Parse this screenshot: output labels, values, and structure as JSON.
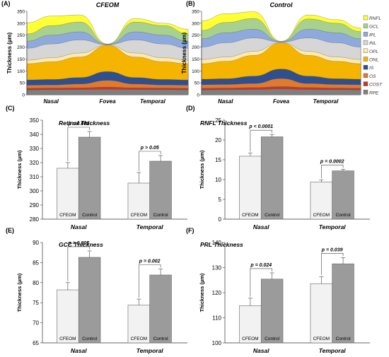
{
  "layer_colors": {
    "RPE": "#7f7f7f",
    "COST": "#c0392b",
    "OS": "#e07a2e",
    "IS": "#2f4f8f",
    "ONL": "#f5b400",
    "OPL": "#fde9a8",
    "INL": "#d6d6d6",
    "IPL": "#8ea9db",
    "GCL": "#a9d18e",
    "RNFL": "#ffff33"
  },
  "bar_colors": {
    "CFEOM": "#f2f2f2",
    "Control": "#9b9b9b"
  },
  "chart_data": [
    {
      "type": "area",
      "panel_label": "(A)",
      "title": "CFEOM",
      "ylabel": "Thickness (µm)",
      "ylim": [
        0,
        350
      ],
      "yticks": [
        0,
        50,
        100,
        150,
        200,
        250,
        300,
        350
      ],
      "xticks": [
        "Nasal",
        "Fovea",
        "Temporal"
      ],
      "legend_position": "none",
      "series_upper_bounds": [
        {
          "name": "RPE",
          "values": [
            20,
            21,
            22,
            23,
            22,
            21,
            20
          ]
        },
        {
          "name": "COST",
          "values": [
            27,
            28,
            29,
            32,
            29,
            28,
            27
          ]
        },
        {
          "name": "OS",
          "values": [
            40,
            41,
            45,
            60,
            45,
            41,
            40
          ]
        },
        {
          "name": "IS",
          "values": [
            62,
            64,
            72,
            97,
            72,
            64,
            62
          ]
        },
        {
          "name": "ONL",
          "values": [
            130,
            138,
            158,
            207,
            158,
            138,
            130
          ]
        },
        {
          "name": "OPL",
          "values": [
            145,
            155,
            175,
            209,
            175,
            155,
            145
          ]
        },
        {
          "name": "INL",
          "values": [
            195,
            213,
            230,
            210,
            230,
            213,
            195
          ]
        },
        {
          "name": "IPL",
          "values": [
            225,
            250,
            264,
            211,
            264,
            250,
            225
          ]
        },
        {
          "name": "GCL",
          "values": [
            255,
            290,
            305,
            212,
            305,
            290,
            255
          ]
        },
        {
          "name": "RNFL",
          "values": [
            302,
            330,
            335,
            213,
            320,
            300,
            275
          ]
        }
      ]
    },
    {
      "type": "area",
      "panel_label": "(B)",
      "title": "Control",
      "ylabel": "Thickness (µm)",
      "ylim": [
        0,
        350
      ],
      "yticks": [
        0,
        50,
        100,
        150,
        200,
        250,
        300,
        350
      ],
      "xticks": [
        "Nasal",
        "Fovea",
        "Temporal"
      ],
      "legend_position": "right",
      "legend": [
        "RNFL",
        "GCL",
        "IPL",
        "INL",
        "OPL",
        "ONL",
        "IS",
        "OS",
        "COST",
        "RPE"
      ],
      "series_upper_bounds": [
        {
          "name": "RPE",
          "values": [
            20,
            21,
            22,
            24,
            22,
            21,
            20
          ]
        },
        {
          "name": "COST",
          "values": [
            27,
            28,
            30,
            34,
            30,
            28,
            27
          ]
        },
        {
          "name": "OS",
          "values": [
            42,
            43,
            47,
            68,
            47,
            43,
            42
          ]
        },
        {
          "name": "IS",
          "values": [
            65,
            67,
            78,
            108,
            78,
            67,
            65
          ]
        },
        {
          "name": "ONL",
          "values": [
            130,
            140,
            165,
            218,
            165,
            140,
            130
          ]
        },
        {
          "name": "OPL",
          "values": [
            148,
            158,
            182,
            220,
            182,
            158,
            148
          ]
        },
        {
          "name": "INL",
          "values": [
            200,
            218,
            238,
            221,
            238,
            218,
            200
          ]
        },
        {
          "name": "IPL",
          "values": [
            235,
            260,
            275,
            222,
            275,
            260,
            235
          ]
        },
        {
          "name": "GCL",
          "values": [
            270,
            303,
            320,
            223,
            318,
            300,
            265
          ]
        },
        {
          "name": "RNFL",
          "values": [
            310,
            340,
            348,
            224,
            335,
            315,
            280
          ]
        }
      ]
    },
    {
      "type": "bar",
      "panel_label": "(C)",
      "title": "Retinal Thickness",
      "ylabel": "Thickness (µm)",
      "ylim": [
        280,
        350
      ],
      "yticks": [
        280,
        290,
        300,
        310,
        320,
        330,
        340,
        350
      ],
      "categories": [
        "Nasal",
        "Temporal"
      ],
      "series": [
        {
          "name": "CFEOM",
          "values": [
            316,
            305.5
          ],
          "errors": [
            4,
            7.5
          ]
        },
        {
          "name": "Control",
          "values": [
            338,
            321
          ],
          "errors": [
            4,
            4
          ]
        }
      ],
      "annotations": [
        "p = 0.001",
        "p > 0.05"
      ]
    },
    {
      "type": "bar",
      "panel_label": "(D)",
      "title": "RNFL Thickness",
      "ylabel": "Thickness (µm)",
      "ylim": [
        0,
        25
      ],
      "yticks": [
        0,
        5,
        10,
        15,
        20,
        25
      ],
      "categories": [
        "Nasal",
        "Temporal"
      ],
      "series": [
        {
          "name": "CFEOM",
          "values": [
            15.9,
            9.4
          ],
          "errors": [
            0.8,
            0.5
          ]
        },
        {
          "name": "Control",
          "values": [
            20.8,
            12.2
          ],
          "errors": [
            0.6,
            0.4
          ]
        }
      ],
      "annotations": [
        "p < 0.0001",
        "p = 0.0002"
      ]
    },
    {
      "type": "bar",
      "panel_label": "(E)",
      "title": "GCC Thickness",
      "ylabel": "Thickness (µm)",
      "ylim": [
        65,
        90
      ],
      "yticks": [
        65,
        70,
        75,
        80,
        85,
        90
      ],
      "categories": [
        "Nasal",
        "Temporal"
      ],
      "series": [
        {
          "name": "CFEOM",
          "values": [
            78.2,
            74.4
          ],
          "errors": [
            1.8,
            1.5
          ]
        },
        {
          "name": "Control",
          "values": [
            86.3,
            81.9
          ],
          "errors": [
            1.6,
            1.5
          ]
        }
      ],
      "annotations": [
        "p = 0.005",
        "p = 0.002"
      ]
    },
    {
      "type": "bar",
      "panel_label": "(F)",
      "title": "PRL Thickness",
      "ylabel": "Thickness (µm)",
      "ylim": [
        100,
        140
      ],
      "yticks": [
        100,
        110,
        120,
        130,
        140
      ],
      "categories": [
        "Nasal",
        "Temporal"
      ],
      "series": [
        {
          "name": "CFEOM",
          "values": [
            114.8,
            123.6
          ],
          "errors": [
            3,
            2.8
          ]
        },
        {
          "name": "Control",
          "values": [
            125.4,
            131.5
          ],
          "errors": [
            2.5,
            2.5
          ]
        }
      ],
      "annotations": [
        "p = 0.024",
        "p = 0.039"
      ]
    }
  ]
}
